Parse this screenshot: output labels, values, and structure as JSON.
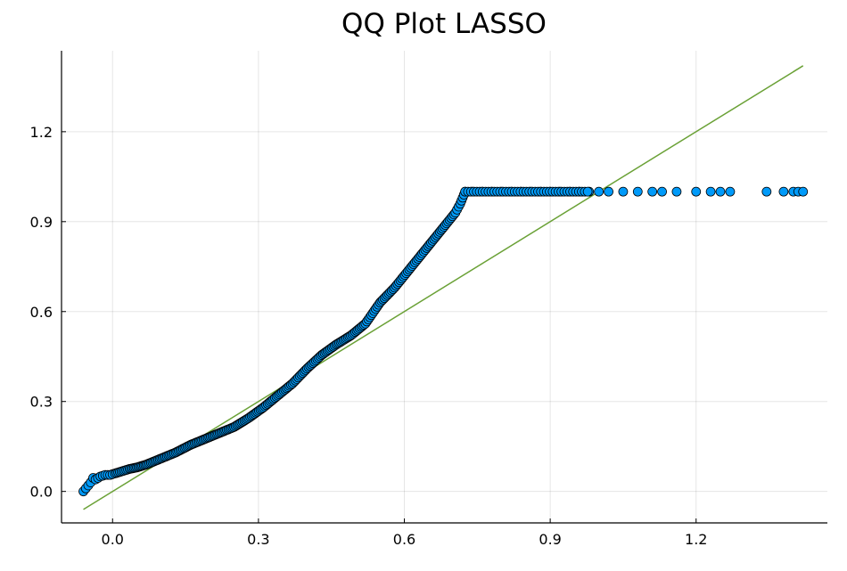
{
  "chart_data": {
    "type": "scatter",
    "title": "QQ Plot LASSO",
    "xlabel": "",
    "ylabel": "",
    "xlim": [
      -0.105,
      1.47
    ],
    "ylim": [
      -0.105,
      1.47
    ],
    "x_ticks": [
      0.0,
      0.3,
      0.6,
      0.9,
      1.2
    ],
    "y_ticks": [
      0.0,
      0.3,
      0.6,
      0.9,
      1.2
    ],
    "x_tick_labels": [
      "0.0",
      "0.3",
      "0.6",
      "0.9",
      "1.2"
    ],
    "y_tick_labels": [
      "0.0",
      "0.3",
      "0.6",
      "0.9",
      "1.2"
    ],
    "grid": true,
    "legend": "none",
    "colors": {
      "points": "#009af9",
      "point_edge": "#000000",
      "reference_line": "#6aa136"
    },
    "series": [
      {
        "type": "scatter",
        "points": [
          [
            -0.06,
            0.0
          ],
          [
            -0.045,
            0.03
          ],
          [
            -0.04,
            0.045
          ],
          [
            -0.035,
            0.04
          ],
          [
            -0.025,
            0.05
          ],
          [
            -0.015,
            0.055
          ],
          [
            -0.005,
            0.055
          ],
          [
            0.005,
            0.06
          ],
          [
            0.015,
            0.065
          ],
          [
            0.025,
            0.07
          ],
          [
            0.035,
            0.075
          ],
          [
            0.05,
            0.08
          ],
          [
            0.07,
            0.09
          ],
          [
            0.1,
            0.11
          ],
          [
            0.13,
            0.13
          ],
          [
            0.16,
            0.155
          ],
          [
            0.19,
            0.175
          ],
          [
            0.22,
            0.195
          ],
          [
            0.25,
            0.215
          ],
          [
            0.28,
            0.245
          ],
          [
            0.31,
            0.28
          ],
          [
            0.34,
            0.32
          ],
          [
            0.37,
            0.36
          ],
          [
            0.4,
            0.41
          ],
          [
            0.43,
            0.455
          ],
          [
            0.46,
            0.49
          ],
          [
            0.49,
            0.52
          ],
          [
            0.52,
            0.56
          ],
          [
            0.55,
            0.63
          ],
          [
            0.58,
            0.68
          ],
          [
            0.61,
            0.74
          ],
          [
            0.64,
            0.8
          ],
          [
            0.67,
            0.86
          ],
          [
            0.69,
            0.9
          ],
          [
            0.705,
            0.93
          ],
          [
            0.715,
            0.96
          ],
          [
            0.72,
            0.98
          ],
          [
            0.725,
            1.0
          ],
          [
            0.74,
            1.0
          ],
          [
            0.76,
            1.0
          ],
          [
            0.78,
            1.0
          ],
          [
            0.8,
            1.0
          ],
          [
            0.82,
            1.0
          ],
          [
            0.84,
            1.0
          ],
          [
            0.86,
            1.0
          ],
          [
            0.88,
            1.0
          ],
          [
            0.9,
            1.0
          ],
          [
            0.92,
            1.0
          ],
          [
            0.94,
            1.0
          ],
          [
            0.96,
            1.0
          ],
          [
            0.98,
            1.0
          ],
          [
            1.0,
            1.0
          ],
          [
            1.02,
            1.0
          ],
          [
            1.05,
            1.0
          ],
          [
            1.08,
            1.0
          ],
          [
            1.11,
            1.0
          ],
          [
            1.13,
            1.0
          ],
          [
            1.16,
            1.0
          ],
          [
            1.2,
            1.0
          ],
          [
            1.23,
            1.0
          ],
          [
            1.25,
            1.0
          ],
          [
            1.27,
            1.0
          ],
          [
            1.345,
            1.0
          ],
          [
            1.38,
            1.0
          ],
          [
            1.4,
            1.0
          ],
          [
            1.41,
            1.0
          ],
          [
            1.42,
            1.0
          ]
        ]
      },
      {
        "type": "line",
        "points": [
          [
            -0.06,
            -0.06
          ],
          [
            1.42,
            1.42
          ]
        ]
      }
    ]
  }
}
